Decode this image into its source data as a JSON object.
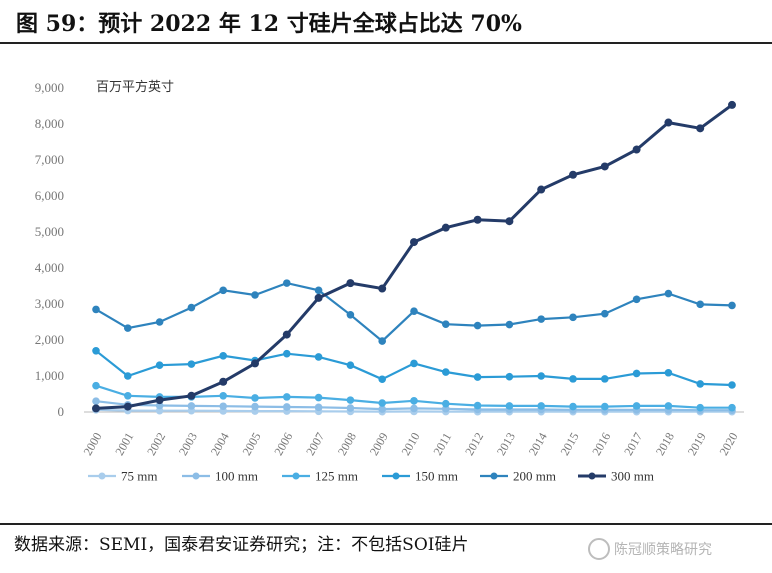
{
  "header": {
    "title": "图 59：预计 2022 年 12 寸硅片全球占比达 70%"
  },
  "footer": {
    "source": "数据来源：SEMI，国泰君安证券研究；注：不包括SOI硅片"
  },
  "watermark": {
    "text": "陈冠顺策略研究"
  },
  "colors": {
    "75 mm": "#a9cdec",
    "100 mm": "#8cbde6",
    "125 mm": "#4aaee3",
    "150 mm": "#2b9bd6",
    "200 mm": "#2e83bd",
    "300 mm": "#243b68"
  },
  "chart_data": {
    "type": "line",
    "title": "",
    "ylabel": "百万平方英寸",
    "xlabel": "",
    "ylim": [
      0,
      9000
    ],
    "yticks": [
      "0",
      "1,000",
      "2,000",
      "3,000",
      "4,000",
      "5,000",
      "6,000",
      "7,000",
      "8,000",
      "9,000"
    ],
    "categories": [
      "2000",
      "2001",
      "2002",
      "2003",
      "2004",
      "2005",
      "2006",
      "2007",
      "2008",
      "2009",
      "2010",
      "2011",
      "2012",
      "2013",
      "2014",
      "2015",
      "2016",
      "2017",
      "2018",
      "2019",
      "2020"
    ],
    "legend_position": "bottom",
    "series": [
      {
        "name": "75 mm",
        "values": [
          60,
          40,
          35,
          35,
          30,
          25,
          25,
          20,
          15,
          10,
          15,
          12,
          10,
          10,
          10,
          10,
          10,
          10,
          10,
          8,
          8
        ]
      },
      {
        "name": "100 mm",
        "values": [
          300,
          200,
          180,
          170,
          160,
          150,
          140,
          130,
          110,
          80,
          100,
          90,
          70,
          70,
          70,
          60,
          60,
          60,
          60,
          50,
          50
        ]
      },
      {
        "name": "125 mm",
        "values": [
          730,
          450,
          420,
          420,
          450,
          390,
          420,
          400,
          330,
          250,
          310,
          230,
          180,
          170,
          170,
          150,
          150,
          170,
          170,
          120,
          120
        ]
      },
      {
        "name": "150 mm",
        "values": [
          1700,
          1000,
          1300,
          1330,
          1560,
          1430,
          1620,
          1530,
          1300,
          910,
          1350,
          1110,
          970,
          980,
          1000,
          920,
          920,
          1070,
          1090,
          780,
          750
        ]
      },
      {
        "name": "200 mm",
        "values": [
          2850,
          2330,
          2500,
          2900,
          3380,
          3250,
          3580,
          3380,
          2700,
          1970,
          2800,
          2440,
          2400,
          2430,
          2580,
          2630,
          2730,
          3130,
          3290,
          2990,
          2960
        ]
      },
      {
        "name": "300 mm",
        "values": [
          100,
          150,
          330,
          450,
          840,
          1350,
          2150,
          3170,
          3580,
          3430,
          4720,
          5120,
          5340,
          5300,
          6180,
          6590,
          6820,
          7290,
          8040,
          7880,
          8530
        ]
      }
    ]
  }
}
